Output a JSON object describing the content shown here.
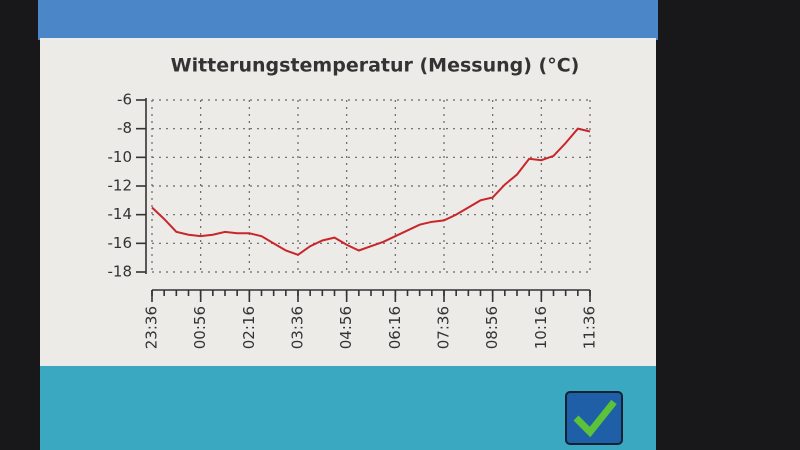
{
  "chart_data": {
    "type": "line",
    "title": "Witterungstemperatur (Messung) (°C)",
    "x": [
      "23:36",
      "23:56",
      "00:16",
      "00:36",
      "00:56",
      "01:16",
      "01:36",
      "01:56",
      "02:16",
      "02:36",
      "02:56",
      "03:16",
      "03:36",
      "03:56",
      "04:16",
      "04:36",
      "04:56",
      "05:16",
      "05:36",
      "05:56",
      "06:16",
      "06:36",
      "06:56",
      "07:16",
      "07:36",
      "07:56",
      "08:16",
      "08:36",
      "08:56",
      "09:16",
      "09:36",
      "09:56",
      "10:16",
      "10:36",
      "10:56",
      "11:16",
      "11:36"
    ],
    "series": [
      {
        "color": "#c8262a",
        "values": [
          -13.5,
          -14.3,
          -15.2,
          -15.4,
          -15.5,
          -15.4,
          -15.2,
          -15.3,
          -15.3,
          -15.5,
          -16.0,
          -16.5,
          -16.8,
          -16.2,
          -15.8,
          -15.6,
          -16.1,
          -16.5,
          -16.2,
          -15.9,
          -15.5,
          -15.1,
          -14.7,
          -14.5,
          -14.4,
          -14.0,
          -13.5,
          -13.0,
          -12.8,
          -11.9,
          -11.2,
          -10.1,
          -10.2,
          -9.9,
          -9.0,
          -8.0,
          -8.2
        ]
      }
    ],
    "xticks": [
      "23:36",
      "00:56",
      "02:16",
      "03:36",
      "04:56",
      "06:16",
      "07:36",
      "08:56",
      "10:16",
      "11:36"
    ],
    "ylim": [
      -18,
      -6
    ],
    "yticks": [
      -6,
      -8,
      -10,
      -12,
      -14,
      -16,
      -18
    ],
    "grid": true
  }
}
